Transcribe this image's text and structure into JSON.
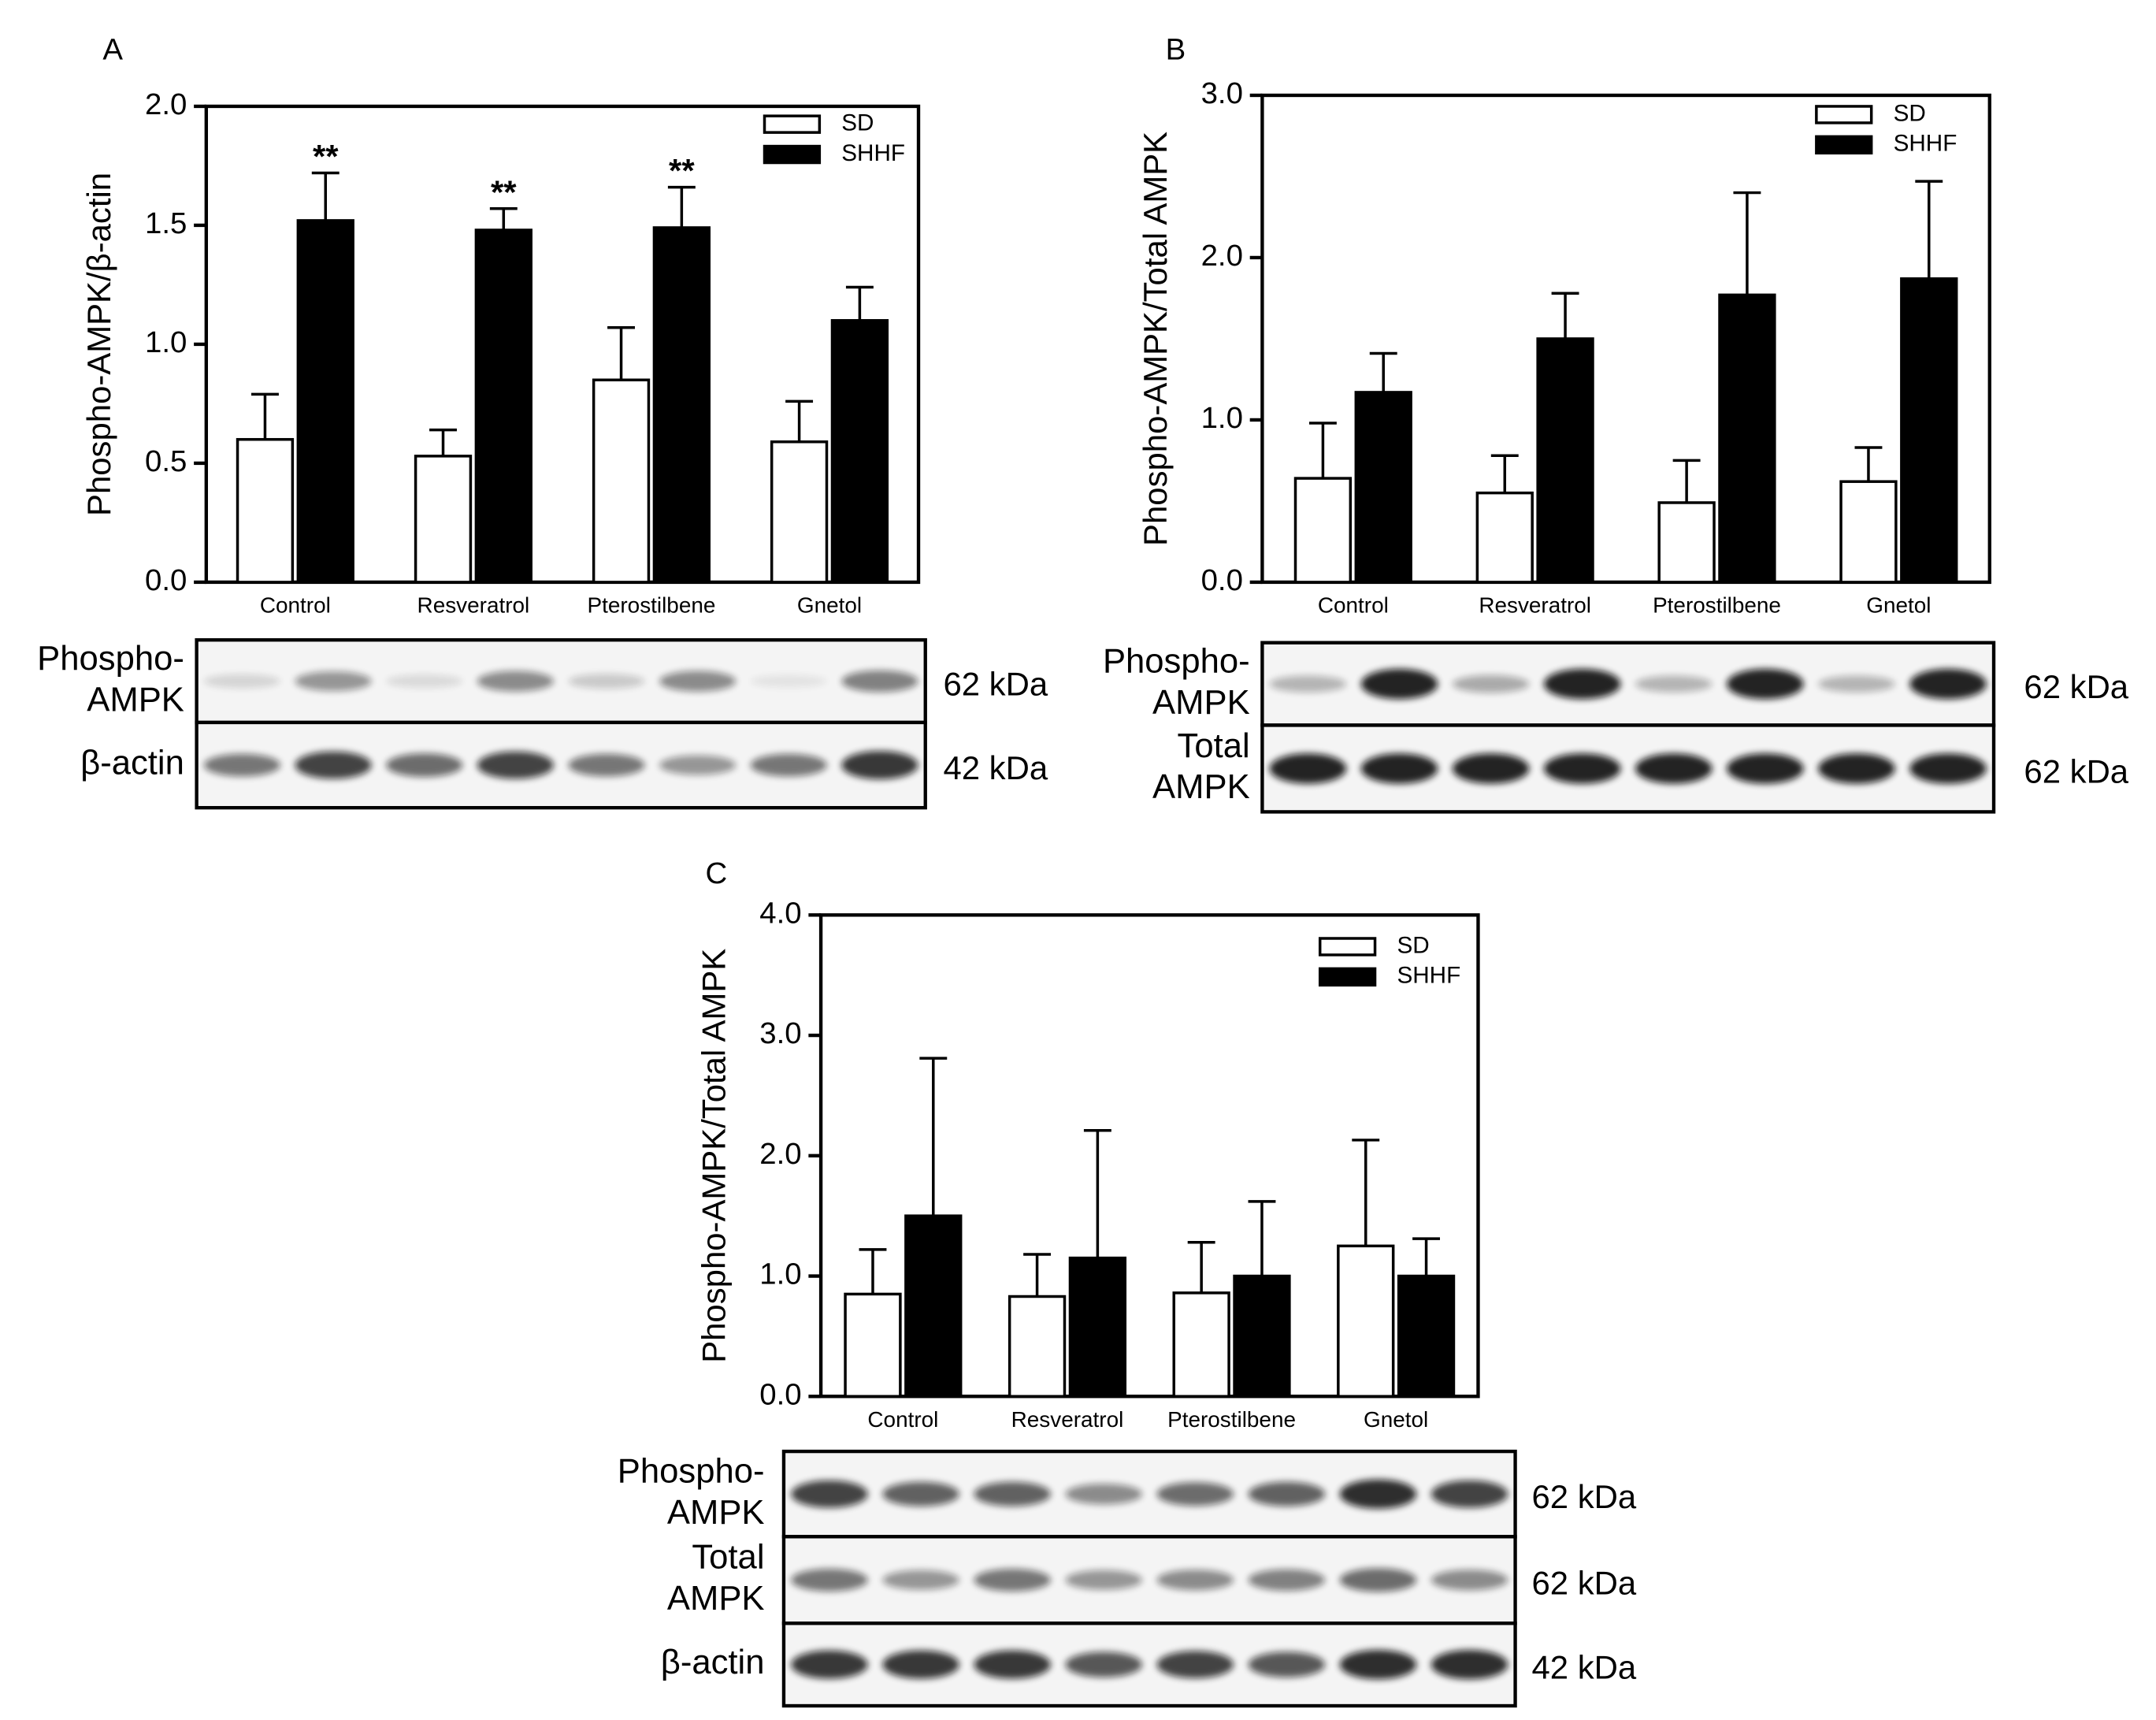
{
  "chart_data": [
    {
      "type": "bar",
      "panel": "A",
      "ylabel": "Phospho-AMPK/β-actin",
      "categories": [
        "Control",
        "Resveratrol",
        "Pterostilbene",
        "Gnetol"
      ],
      "series": [
        {
          "name": "SD",
          "color": "#ffffff",
          "values": [
            0.6,
            0.53,
            0.85,
            0.59
          ],
          "errors": [
            0.19,
            0.11,
            0.22,
            0.17
          ]
        },
        {
          "name": "SHHF",
          "color": "#000000",
          "values": [
            1.52,
            1.48,
            1.49,
            1.1
          ],
          "errors": [
            0.2,
            0.09,
            0.17,
            0.14
          ],
          "significance": [
            "**",
            "**",
            "**",
            null
          ]
        }
      ],
      "ylim": [
        0,
        2
      ],
      "yticks": [
        {
          "value": 0,
          "label": "0.0"
        },
        {
          "value": 0.5,
          "label": "0.5"
        },
        {
          "value": 1,
          "label": "1.0"
        },
        {
          "value": 1.5,
          "label": "1.5"
        },
        {
          "value": 2,
          "label": "2.0"
        }
      ],
      "blots": [
        {
          "label": [
            "Phospho-",
            "AMPK"
          ],
          "size": "62 kDa"
        },
        {
          "label": [
            "β-actin"
          ],
          "size": "42 kDa"
        }
      ]
    },
    {
      "type": "bar",
      "panel": "B",
      "ylabel": "Phospho-AMPK/Total AMPK",
      "categories": [
        "Control",
        "Resveratrol",
        "Pterostilbene",
        "Gnetol"
      ],
      "series": [
        {
          "name": "SD",
          "color": "#ffffff",
          "values": [
            0.64,
            0.55,
            0.49,
            0.62
          ],
          "errors": [
            0.34,
            0.23,
            0.26,
            0.21
          ]
        },
        {
          "name": "SHHF",
          "color": "#000000",
          "values": [
            1.17,
            1.5,
            1.77,
            1.87
          ],
          "errors": [
            0.24,
            0.28,
            0.63,
            0.6
          ]
        }
      ],
      "ylim": [
        0,
        3
      ],
      "yticks": [
        {
          "value": 0,
          "label": "0.0"
        },
        {
          "value": 1,
          "label": "1.0"
        },
        {
          "value": 2,
          "label": "2.0"
        },
        {
          "value": 3,
          "label": "3.0"
        }
      ],
      "blots": [
        {
          "label": [
            "Phospho-",
            "AMPK"
          ],
          "size": "62 kDa"
        },
        {
          "label": [
            "Total",
            "AMPK"
          ],
          "size": "62 kDa"
        }
      ]
    },
    {
      "type": "bar",
      "panel": "C",
      "ylabel": "Phospho-AMPK/Total AMPK",
      "categories": [
        "Control",
        "Resveratrol",
        "Pterostilbene",
        "Gnetol"
      ],
      "series": [
        {
          "name": "SD",
          "color": "#ffffff",
          "values": [
            0.85,
            0.83,
            0.86,
            1.25
          ],
          "errors": [
            0.37,
            0.35,
            0.42,
            0.88
          ]
        },
        {
          "name": "SHHF",
          "color": "#000000",
          "values": [
            1.5,
            1.15,
            1.0,
            1.0
          ],
          "errors": [
            1.31,
            1.06,
            0.62,
            0.31
          ]
        }
      ],
      "ylim": [
        0,
        4
      ],
      "yticks": [
        {
          "value": 0,
          "label": "0.0"
        },
        {
          "value": 1,
          "label": "1.0"
        },
        {
          "value": 2,
          "label": "2.0"
        },
        {
          "value": 3,
          "label": "3.0"
        },
        {
          "value": 4,
          "label": "4.0"
        }
      ],
      "blots": [
        {
          "label": [
            "Phospho-",
            "AMPK"
          ],
          "size": "62 kDa"
        },
        {
          "label": [
            "Total",
            "AMPK"
          ],
          "size": "62 kDa"
        },
        {
          "label": [
            "β-actin"
          ],
          "size": "42 kDa"
        }
      ]
    }
  ]
}
